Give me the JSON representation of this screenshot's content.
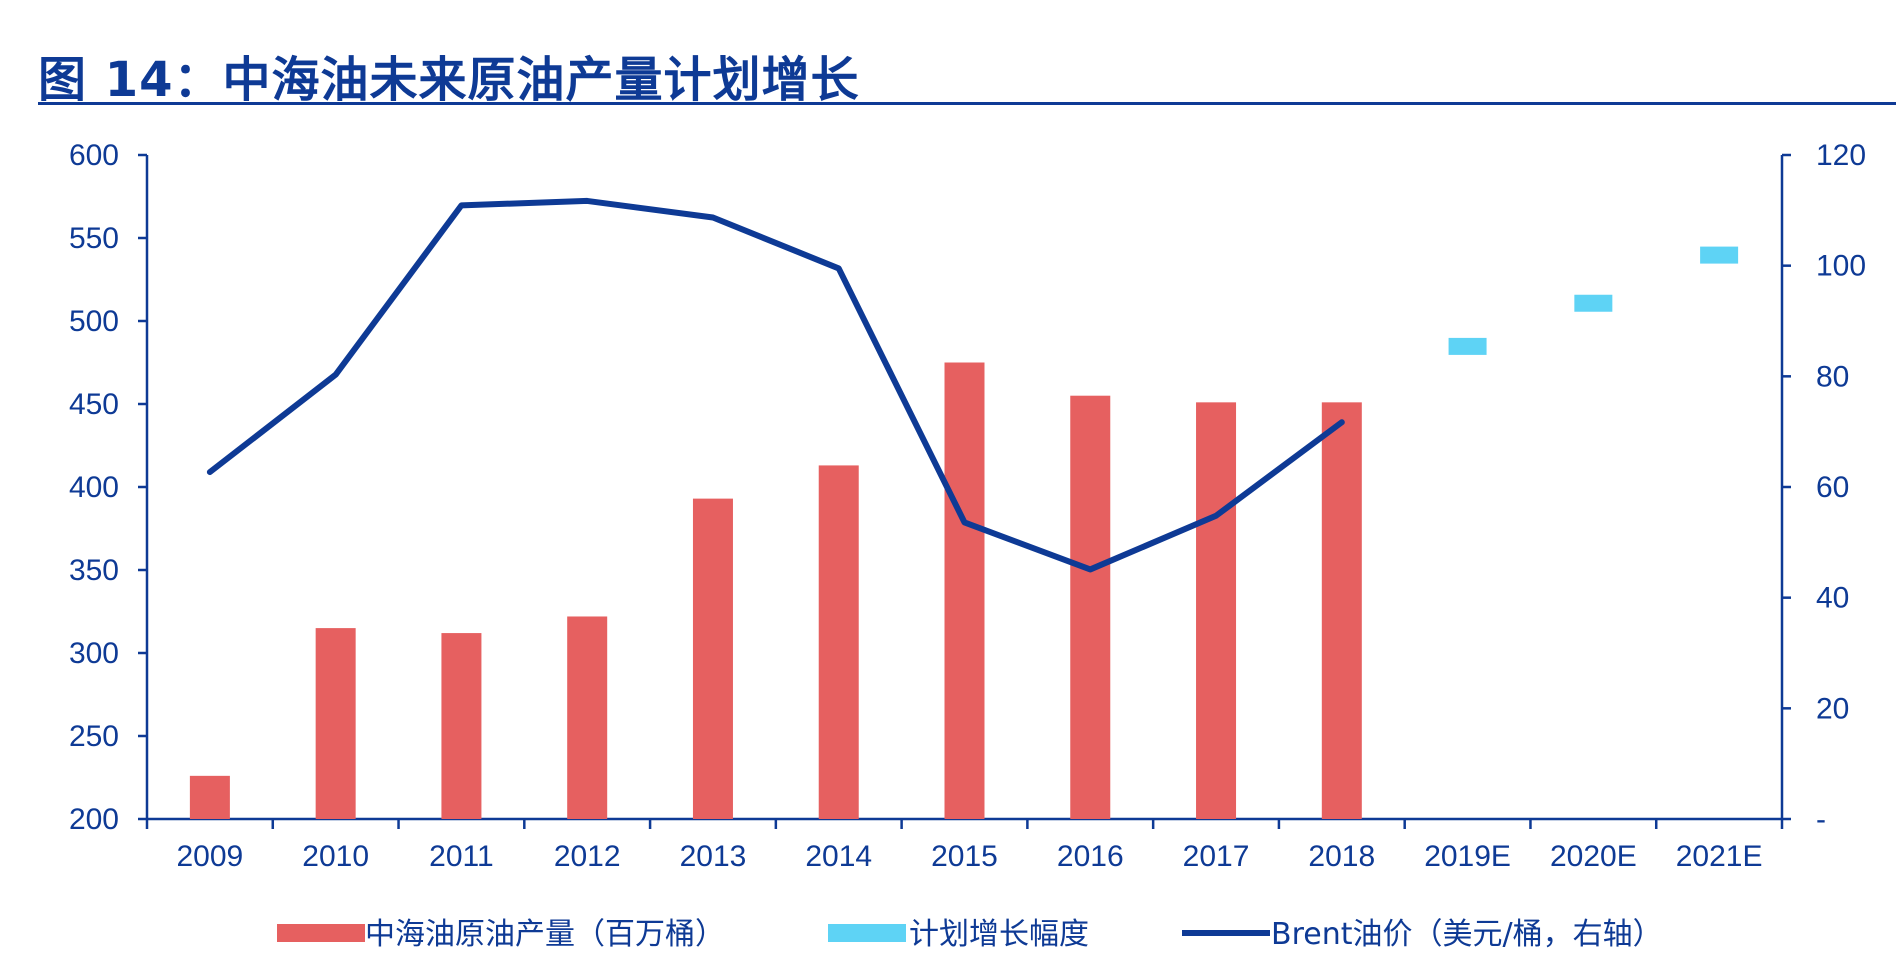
{
  "header": {
    "title": "图 14：中海油未来原油产量计划增长"
  },
  "chart_data": {
    "type": "bar",
    "categories": [
      "2009",
      "2010",
      "2011",
      "2012",
      "2013",
      "2014",
      "2015",
      "2016",
      "2017",
      "2018",
      "2019E",
      "2020E",
      "2021E"
    ],
    "y_left": {
      "ylim": [
        200,
        600
      ],
      "ticks": [
        "600",
        "550",
        "500",
        "450",
        "400",
        "350",
        "300",
        "250",
        "200"
      ]
    },
    "y_right": {
      "ylim": [
        0,
        120
      ],
      "ticks": [
        "120",
        "100",
        "80",
        "60",
        "40",
        "20",
        "-"
      ]
    },
    "series": [
      {
        "name": "中海油原油产量（百万桶）",
        "type": "bar",
        "axis": "left",
        "color": "#e66060",
        "values": [
          226,
          315,
          312,
          322,
          393,
          413,
          475,
          455,
          451,
          451,
          null,
          null,
          null
        ]
      },
      {
        "name": "计划增长幅度",
        "type": "marker",
        "axis": "left",
        "color": "#5ed3f5",
        "values": [
          null,
          null,
          null,
          null,
          null,
          null,
          null,
          null,
          null,
          null,
          485,
          511,
          540
        ]
      },
      {
        "name": "Brent油价（美元/桶，右轴）",
        "type": "line",
        "axis": "right",
        "color": "#0e3a95",
        "values": [
          62.7,
          80.3,
          110.9,
          111.7,
          108.7,
          99.5,
          53.6,
          45.1,
          54.8,
          71.7,
          null,
          null,
          null
        ]
      }
    ],
    "legend": "bottom",
    "grid": false
  }
}
